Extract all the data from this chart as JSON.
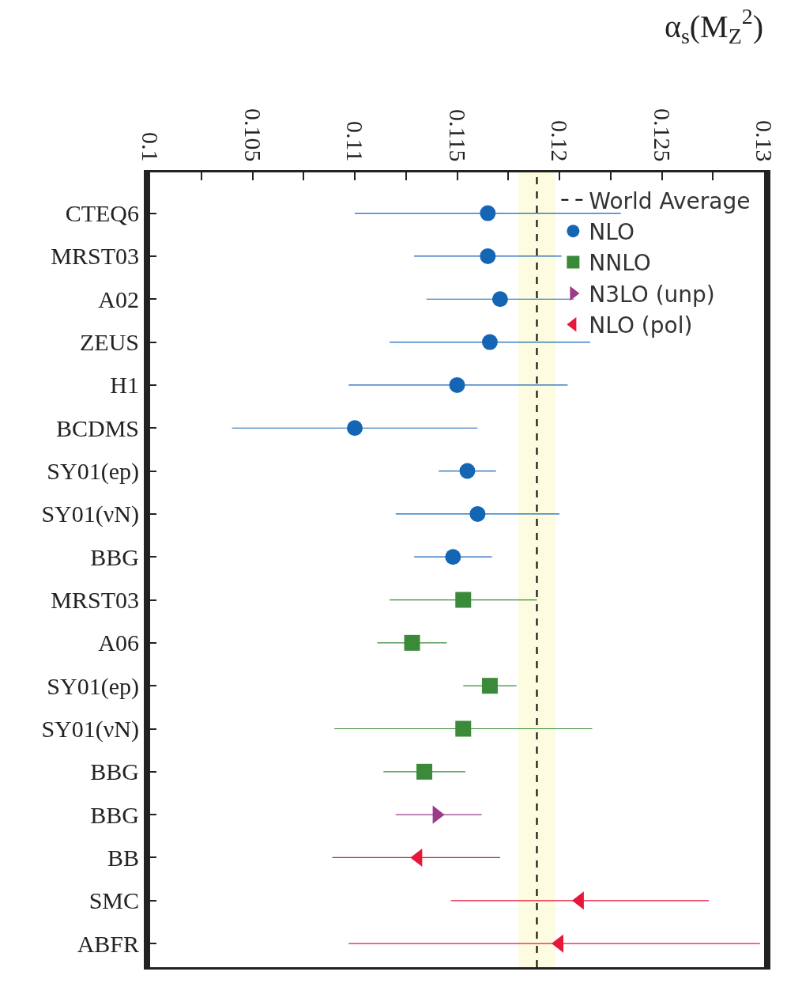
{
  "chart_data": {
    "type": "scatter",
    "orientation": "horizontal",
    "title": "α$_{s}$(M$_{Z}$$^{2}$)",
    "categories": [
      "CTEQ6",
      "MRST03",
      "A02",
      "ZEUS",
      "H1",
      "BCDMS",
      "SY01(ep)",
      "SY01(νN)",
      "BBG",
      "MRST03",
      "A06",
      "SY01(ep)",
      "SY01(νN)",
      "BBG",
      "BBG",
      "BB",
      "SMC",
      "ABFR"
    ],
    "series": [
      {
        "name": "NLO",
        "color": "#1565b5",
        "marker": "circle",
        "values": [
          0.1165,
          0.1165,
          0.1171,
          0.1166,
          0.115,
          0.11,
          0.1155,
          0.116,
          0.1148,
          null,
          null,
          null,
          null,
          null,
          null,
          null,
          null,
          null
        ],
        "errors": [
          [
            0.11,
            0.123
          ],
          [
            0.1129,
            0.1201
          ],
          [
            0.1135,
            0.1207
          ],
          [
            0.1117,
            0.1215
          ],
          [
            0.1097,
            0.1204
          ],
          [
            0.104,
            0.116
          ],
          [
            0.1141,
            0.1169
          ],
          [
            0.112,
            0.12
          ],
          [
            0.1129,
            0.1167
          ],
          null,
          null,
          null,
          null,
          null,
          null,
          null,
          null,
          null
        ]
      },
      {
        "name": "NNLO",
        "color": "#3a8a3a",
        "marker": "square",
        "values": [
          null,
          null,
          null,
          null,
          null,
          null,
          null,
          null,
          null,
          0.1153,
          0.1128,
          0.1166,
          0.1153,
          0.1134,
          null,
          null,
          null,
          null
        ],
        "errors": [
          null,
          null,
          null,
          null,
          null,
          null,
          null,
          null,
          null,
          [
            0.1117,
            0.1189
          ],
          [
            0.1111,
            0.1145
          ],
          [
            0.1153,
            0.1179
          ],
          [
            0.109,
            0.1216
          ],
          [
            0.1114,
            0.1154
          ],
          null,
          null,
          null,
          null
        ]
      },
      {
        "name": "N3LO (unp)",
        "color": "#9b3b8c",
        "marker": "triangle-right",
        "values": [
          null,
          null,
          null,
          null,
          null,
          null,
          null,
          null,
          null,
          null,
          null,
          null,
          null,
          null,
          0.114,
          null,
          null,
          null
        ],
        "errors": [
          null,
          null,
          null,
          null,
          null,
          null,
          null,
          null,
          null,
          null,
          null,
          null,
          null,
          null,
          [
            0.112,
            0.1162
          ],
          null,
          null,
          null
        ]
      },
      {
        "name": "NLO (pol)",
        "color": "#e8173a",
        "marker": "triangle-left",
        "values": [
          null,
          null,
          null,
          null,
          null,
          null,
          null,
          null,
          null,
          null,
          null,
          null,
          null,
          null,
          null,
          0.1131,
          0.121,
          0.12
        ],
        "errors": [
          null,
          null,
          null,
          null,
          null,
          null,
          null,
          null,
          null,
          null,
          null,
          null,
          null,
          null,
          null,
          [
            0.1089,
            0.1171
          ],
          [
            0.1147,
            0.1273
          ],
          [
            0.1097,
            0.1298
          ]
        ]
      }
    ],
    "xlim": [
      0.1,
      0.13
    ],
    "xticks": [
      0.1,
      {
        "value": 0.1025,
        "label": null
      },
      0.105,
      {
        "value": 0.1075,
        "label": null
      },
      0.11,
      {
        "value": 0.1125,
        "label": null
      },
      0.115,
      {
        "value": 0.1175,
        "label": null
      },
      0.12,
      {
        "value": 0.1225,
        "label": null
      },
      0.125,
      {
        "value": 0.1275,
        "label": null
      },
      0.13
    ],
    "ref_lines": [
      {
        "axis": "x",
        "value": 0.1189,
        "label": "World Average",
        "color": "#000000",
        "line_style": "dashed"
      }
    ],
    "bands": [
      {
        "axis": "x",
        "from": 0.118,
        "to": 0.1198,
        "color": "#fdfbe0"
      }
    ],
    "grid": false,
    "legend": "top right"
  }
}
